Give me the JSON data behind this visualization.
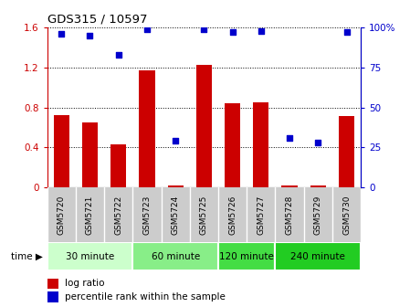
{
  "title": "GDS315 / 10597",
  "samples": [
    "GSM5720",
    "GSM5721",
    "GSM5722",
    "GSM5723",
    "GSM5724",
    "GSM5725",
    "GSM5726",
    "GSM5727",
    "GSM5728",
    "GSM5729",
    "GSM5730"
  ],
  "log_ratio": [
    0.72,
    0.65,
    0.43,
    1.17,
    0.02,
    1.23,
    0.84,
    0.85,
    0.02,
    0.02,
    0.71
  ],
  "percentile_rank": [
    96,
    95,
    83,
    99,
    29,
    99,
    97,
    98,
    31,
    28,
    97
  ],
  "bar_color": "#cc0000",
  "dot_color": "#0000cc",
  "ylim_left": [
    0,
    1.6
  ],
  "ylim_right": [
    0,
    100
  ],
  "yticks_left": [
    0,
    0.4,
    0.8,
    1.2,
    1.6
  ],
  "ytick_labels_left": [
    "0",
    "0.4",
    "0.8",
    "1.2",
    "1.6"
  ],
  "yticks_right": [
    0,
    25,
    50,
    75,
    100
  ],
  "ytick_labels_right": [
    "0",
    "25",
    "50",
    "75",
    "100%"
  ],
  "groups": [
    {
      "label": "30 minute",
      "start": 0,
      "end": 2,
      "color": "#ccffcc"
    },
    {
      "label": "60 minute",
      "start": 3,
      "end": 5,
      "color": "#88ee88"
    },
    {
      "label": "120 minute",
      "start": 6,
      "end": 7,
      "color": "#44dd44"
    },
    {
      "label": "240 minute",
      "start": 8,
      "end": 10,
      "color": "#22cc22"
    }
  ],
  "legend_log_ratio": "log ratio",
  "legend_percentile": "percentile rank within the sample",
  "sample_bg_color": "#cccccc",
  "fig_bg": "#ffffff",
  "xlim": [
    -0.5,
    10.5
  ]
}
